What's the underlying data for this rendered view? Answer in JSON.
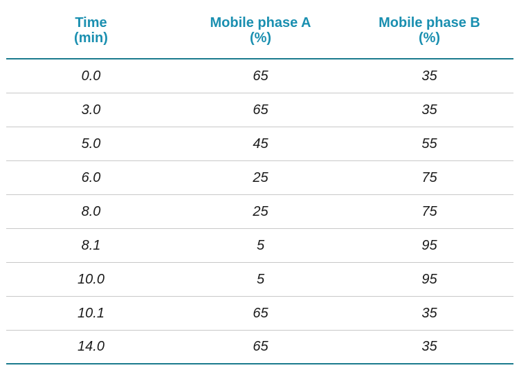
{
  "table": {
    "headers": [
      "Time\n(min)",
      "Mobile phase A\n(%)",
      "Mobile phase B\n(%)"
    ],
    "rows": [
      [
        "0.0",
        "65",
        "35"
      ],
      [
        "3.0",
        "65",
        "35"
      ],
      [
        "5.0",
        "45",
        "55"
      ],
      [
        "6.0",
        "25",
        "75"
      ],
      [
        "8.0",
        "25",
        "75"
      ],
      [
        "8.1",
        "5",
        "95"
      ],
      [
        "10.0",
        "5",
        "95"
      ],
      [
        "10.1",
        "65",
        "35"
      ],
      [
        "14.0",
        "65",
        "35"
      ]
    ]
  },
  "colors": {
    "header_text": "#1a8fb0",
    "rule": "#1b7b8e",
    "row_divider": "#c8c8c8"
  }
}
